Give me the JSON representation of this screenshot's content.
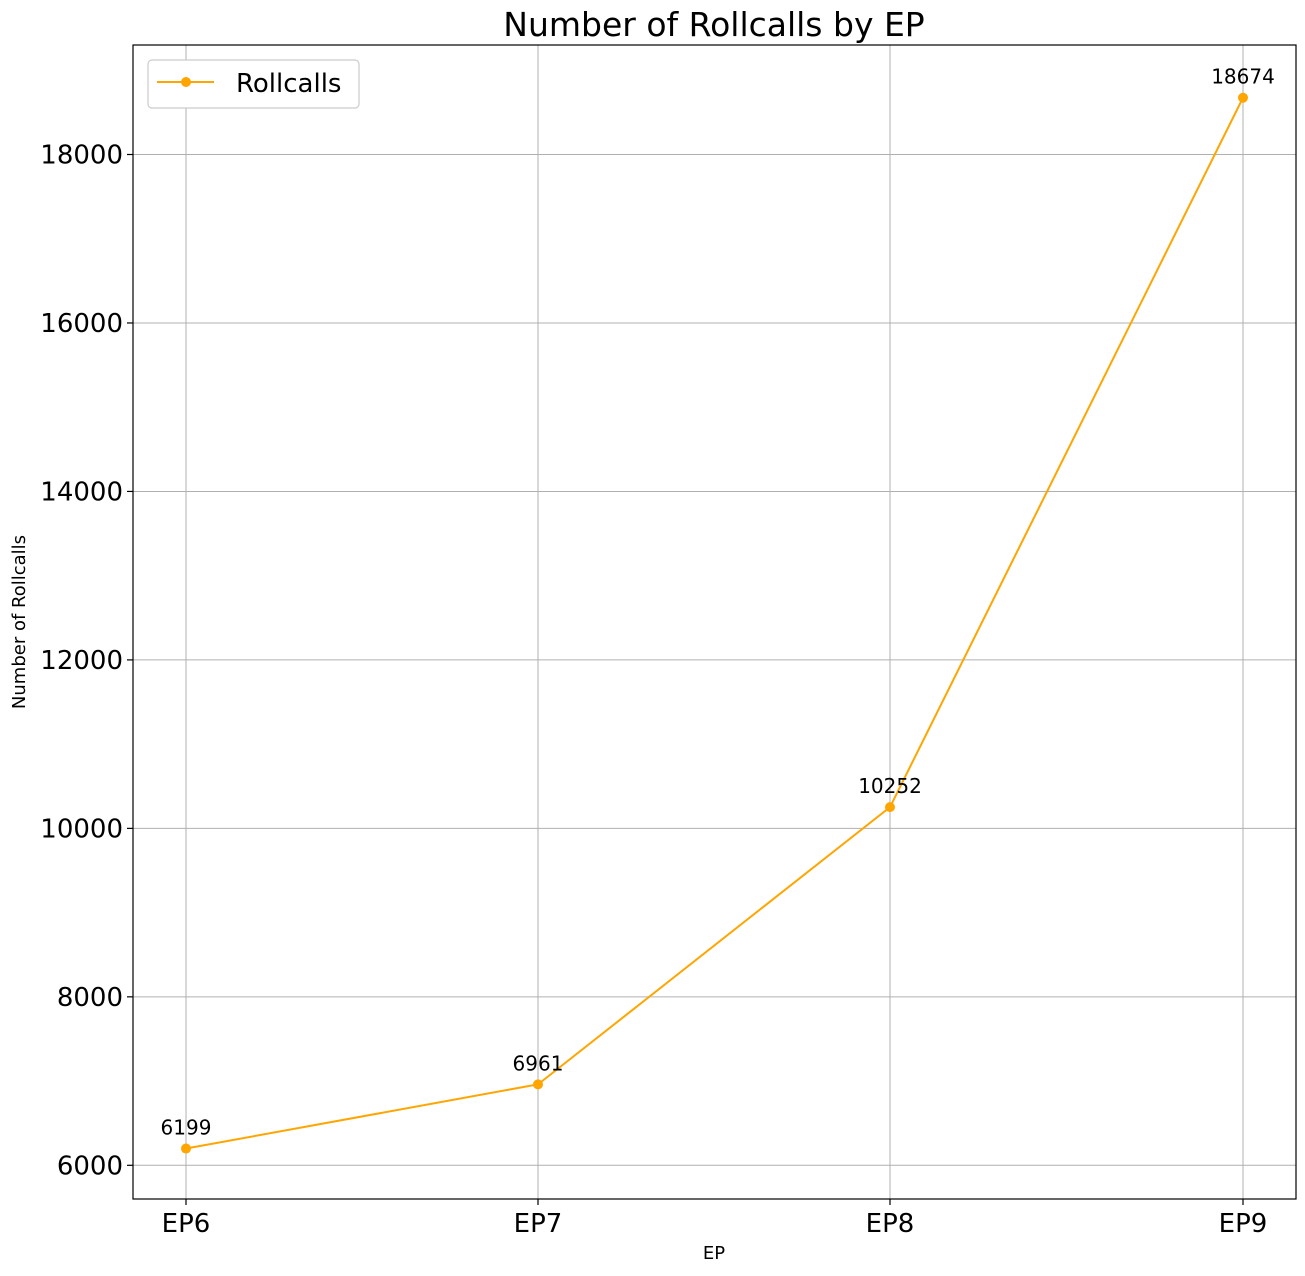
{
  "chart_data": {
    "type": "line",
    "title": "Number of Rollcalls by EP",
    "xlabel": "EP",
    "ylabel": "Number of Rollcalls",
    "categories": [
      "EP6",
      "EP7",
      "EP8",
      "EP9"
    ],
    "series": [
      {
        "name": "Rollcalls",
        "values": [
          6199,
          6961,
          10252,
          18674
        ],
        "color": "#ffa500",
        "marker": "circle"
      }
    ],
    "ylim": [
      5600,
      19300
    ],
    "yticks": [
      6000,
      8000,
      10000,
      12000,
      14000,
      16000,
      18000
    ],
    "data_labels": true,
    "grid": true,
    "legend_position": "top-left"
  }
}
